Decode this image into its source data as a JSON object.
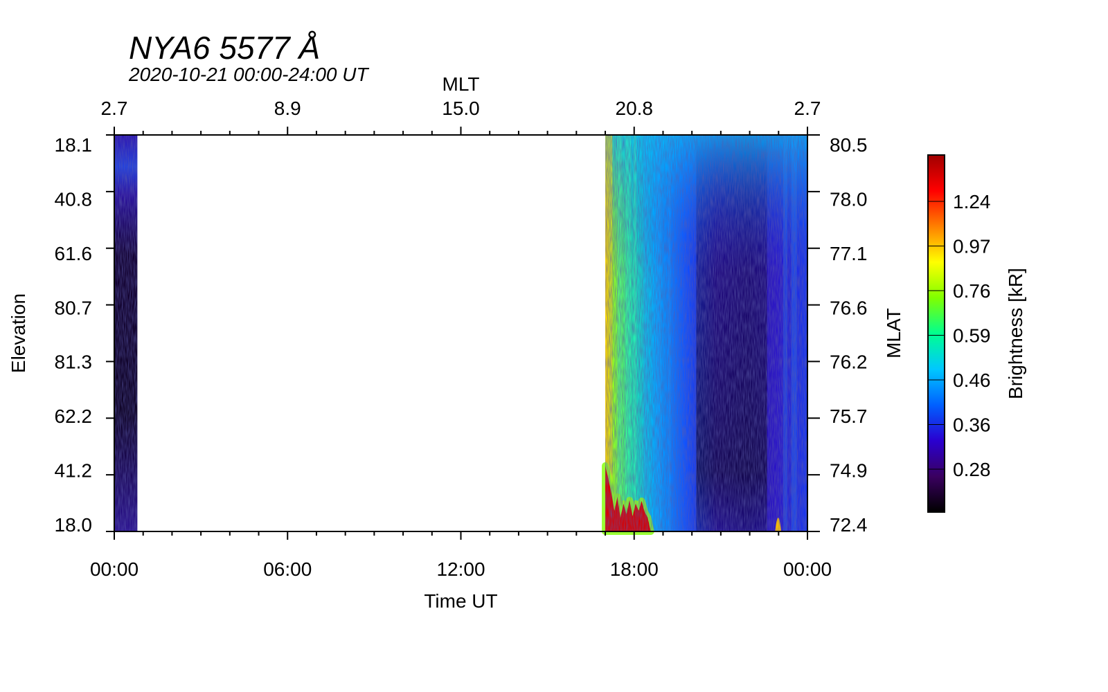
{
  "chart_data": {
    "type": "heatmap",
    "title": "NYA6 5577 Å",
    "subtitle": "2020-10-21 00:00-24:00 UT",
    "xlabel": "Time UT",
    "x_top_label": "MLT",
    "ylabel": "Elevation",
    "y_right_label": "MLAT",
    "colorbar_label": "Brightness [kR]",
    "x_range_hours": [
      0,
      24
    ],
    "x_ticks": [
      {
        "hour": 0,
        "label": "00:00"
      },
      {
        "hour": 6,
        "label": "06:00"
      },
      {
        "hour": 12,
        "label": "12:00"
      },
      {
        "hour": 18,
        "label": "18:00"
      },
      {
        "hour": 24,
        "label": "00:00"
      }
    ],
    "mlt_ticks": [
      {
        "hour": 0,
        "label": "2.7"
      },
      {
        "hour": 6,
        "label": "8.9"
      },
      {
        "hour": 12,
        "label": "15.0"
      },
      {
        "hour": 18,
        "label": "20.8"
      },
      {
        "hour": 24,
        "label": "2.7"
      }
    ],
    "elevation_ticks": [
      "18.1",
      "40.8",
      "61.6",
      "80.7",
      "81.3",
      "62.2",
      "41.2",
      "18.0"
    ],
    "mlat_ticks": [
      "80.5",
      "78.0",
      "77.1",
      "76.6",
      "76.2",
      "75.7",
      "74.9",
      "72.4"
    ],
    "colorbar_ticks": [
      "0.28",
      "0.36",
      "0.46",
      "0.59",
      "0.76",
      "0.97",
      "1.24"
    ],
    "colormap": [
      "#000000",
      "#3a0060",
      "#2a00d0",
      "#0060ff",
      "#00c8ff",
      "#00ff90",
      "#80ff00",
      "#ffff00",
      "#ff8000",
      "#ff0000",
      "#a00000"
    ],
    "data_intervals_hours": [
      [
        0.0,
        0.8
      ],
      [
        17.0,
        24.0
      ]
    ]
  }
}
